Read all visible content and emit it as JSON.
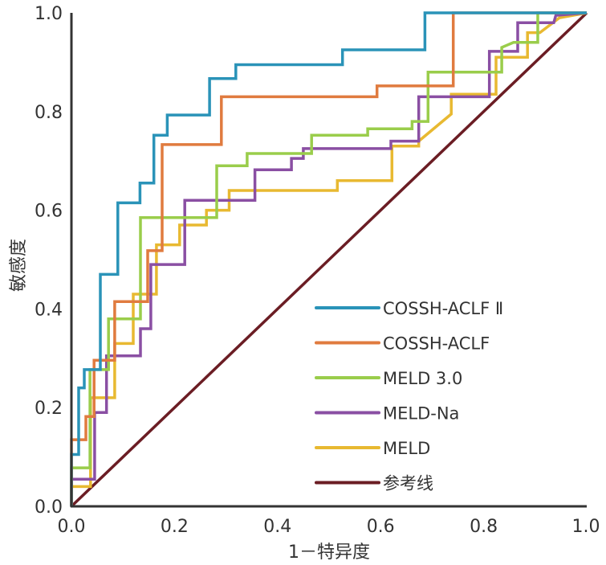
{
  "chart_data": {
    "type": "line",
    "title": "",
    "xlabel": "1－特异度",
    "ylabel": "敏感度",
    "xlim": [
      0,
      1.0
    ],
    "ylim": [
      0,
      1.0
    ],
    "x_ticks": [
      "0.0",
      "0.2",
      "0.4",
      "0.6",
      "0.8",
      "1.0"
    ],
    "y_ticks": [
      "0.0",
      "0.2",
      "0.4",
      "0.6",
      "0.8",
      "1.0"
    ],
    "x_tick_values": [
      0,
      0.2,
      0.4,
      0.6,
      0.8,
      1.0
    ],
    "y_tick_values": [
      0,
      0.2,
      0.4,
      0.6,
      0.8,
      1.0
    ],
    "grid": false,
    "legend_position": "bottom-right",
    "series": [
      {
        "name": "COSSH-ACLF Ⅱ",
        "color": "#2a93b8",
        "points": [
          [
            0,
            0
          ],
          [
            0,
            0.105
          ],
          [
            0.014,
            0.105
          ],
          [
            0.014,
            0.24
          ],
          [
            0.025,
            0.24
          ],
          [
            0.025,
            0.277
          ],
          [
            0.056,
            0.277
          ],
          [
            0.056,
            0.47
          ],
          [
            0.09,
            0.47
          ],
          [
            0.09,
            0.615
          ],
          [
            0.133,
            0.615
          ],
          [
            0.133,
            0.655
          ],
          [
            0.16,
            0.655
          ],
          [
            0.16,
            0.752
          ],
          [
            0.186,
            0.752
          ],
          [
            0.186,
            0.793
          ],
          [
            0.268,
            0.793
          ],
          [
            0.268,
            0.867
          ],
          [
            0.319,
            0.867
          ],
          [
            0.319,
            0.895
          ],
          [
            0.526,
            0.895
          ],
          [
            0.526,
            0.925
          ],
          [
            0.686,
            0.925
          ],
          [
            0.686,
            1.0
          ],
          [
            1.0,
            1.0
          ]
        ]
      },
      {
        "name": "COSSH-ACLF",
        "color": "#e07b3f",
        "points": [
          [
            0,
            0
          ],
          [
            0,
            0.135
          ],
          [
            0.028,
            0.135
          ],
          [
            0.028,
            0.182
          ],
          [
            0.044,
            0.182
          ],
          [
            0.044,
            0.296
          ],
          [
            0.084,
            0.296
          ],
          [
            0.084,
            0.415
          ],
          [
            0.148,
            0.415
          ],
          [
            0.148,
            0.518
          ],
          [
            0.176,
            0.518
          ],
          [
            0.176,
            0.733
          ],
          [
            0.291,
            0.733
          ],
          [
            0.291,
            0.83
          ],
          [
            0.593,
            0.83
          ],
          [
            0.593,
            0.852
          ],
          [
            0.741,
            0.852
          ],
          [
            0.741,
            1.0
          ],
          [
            1.0,
            1.0
          ]
        ]
      },
      {
        "name": "MELD 3.0",
        "color": "#9acd4b",
        "points": [
          [
            0,
            0
          ],
          [
            0,
            0.078
          ],
          [
            0.036,
            0.078
          ],
          [
            0.036,
            0.277
          ],
          [
            0.072,
            0.277
          ],
          [
            0.072,
            0.38
          ],
          [
            0.134,
            0.38
          ],
          [
            0.134,
            0.585
          ],
          [
            0.282,
            0.585
          ],
          [
            0.282,
            0.69
          ],
          [
            0.341,
            0.69
          ],
          [
            0.341,
            0.715
          ],
          [
            0.466,
            0.715
          ],
          [
            0.466,
            0.752
          ],
          [
            0.575,
            0.752
          ],
          [
            0.575,
            0.765
          ],
          [
            0.661,
            0.765
          ],
          [
            0.661,
            0.78
          ],
          [
            0.692,
            0.78
          ],
          [
            0.692,
            0.88
          ],
          [
            0.835,
            0.88
          ],
          [
            0.835,
            0.93
          ],
          [
            0.858,
            0.94
          ],
          [
            0.905,
            0.94
          ],
          [
            0.905,
            1.0
          ],
          [
            1.0,
            1.0
          ]
        ]
      },
      {
        "name": "MELD-Na",
        "color": "#8a4fa3",
        "points": [
          [
            0,
            0
          ],
          [
            0,
            0.055
          ],
          [
            0.045,
            0.055
          ],
          [
            0.045,
            0.19
          ],
          [
            0.068,
            0.19
          ],
          [
            0.068,
            0.305
          ],
          [
            0.134,
            0.305
          ],
          [
            0.134,
            0.36
          ],
          [
            0.154,
            0.36
          ],
          [
            0.154,
            0.49
          ],
          [
            0.22,
            0.49
          ],
          [
            0.22,
            0.62
          ],
          [
            0.356,
            0.62
          ],
          [
            0.356,
            0.682
          ],
          [
            0.427,
            0.682
          ],
          [
            0.427,
            0.705
          ],
          [
            0.45,
            0.705
          ],
          [
            0.45,
            0.725
          ],
          [
            0.62,
            0.725
          ],
          [
            0.62,
            0.74
          ],
          [
            0.674,
            0.74
          ],
          [
            0.674,
            0.83
          ],
          [
            0.811,
            0.83
          ],
          [
            0.811,
            0.922
          ],
          [
            0.866,
            0.922
          ],
          [
            0.866,
            0.98
          ],
          [
            0.936,
            0.98
          ],
          [
            0.94,
            0.995
          ],
          [
            1.0,
            1.0
          ]
        ]
      },
      {
        "name": "MELD",
        "color": "#e8b931",
        "points": [
          [
            0,
            0
          ],
          [
            0,
            0.04
          ],
          [
            0.037,
            0.04
          ],
          [
            0.037,
            0.22
          ],
          [
            0.084,
            0.22
          ],
          [
            0.084,
            0.33
          ],
          [
            0.12,
            0.33
          ],
          [
            0.12,
            0.43
          ],
          [
            0.165,
            0.43
          ],
          [
            0.165,
            0.53
          ],
          [
            0.21,
            0.53
          ],
          [
            0.21,
            0.57
          ],
          [
            0.262,
            0.57
          ],
          [
            0.262,
            0.6
          ],
          [
            0.306,
            0.6
          ],
          [
            0.306,
            0.64
          ],
          [
            0.516,
            0.64
          ],
          [
            0.516,
            0.66
          ],
          [
            0.622,
            0.66
          ],
          [
            0.622,
            0.73
          ],
          [
            0.674,
            0.73
          ],
          [
            0.674,
            0.74
          ],
          [
            0.737,
            0.795
          ],
          [
            0.737,
            0.835
          ],
          [
            0.824,
            0.835
          ],
          [
            0.824,
            0.91
          ],
          [
            0.885,
            0.91
          ],
          [
            0.885,
            0.96
          ],
          [
            0.909,
            0.96
          ],
          [
            0.947,
            0.99
          ],
          [
            1.0,
            1.0
          ]
        ]
      },
      {
        "name": "参考线",
        "color": "#6b1d24",
        "points": [
          [
            0,
            0
          ],
          [
            1.0,
            1.0
          ]
        ]
      }
    ]
  }
}
